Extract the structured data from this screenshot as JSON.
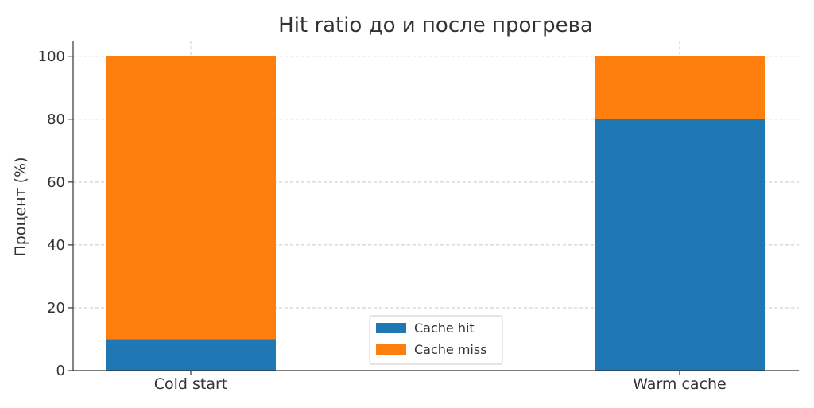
{
  "chart_data": {
    "type": "bar",
    "stacked": true,
    "title": "Hit ratio до и после прогрева",
    "xlabel": "",
    "ylabel": "Процент (%)",
    "categories": [
      "Cold start",
      "Warm cache"
    ],
    "series": [
      {
        "name": "Cache hit",
        "values": [
          10,
          80
        ],
        "color": "#1f77b4"
      },
      {
        "name": "Cache miss",
        "values": [
          90,
          20
        ],
        "color": "#ff7f0e"
      }
    ],
    "ylim": [
      0,
      105
    ],
    "yticks": [
      0,
      20,
      40,
      60,
      80,
      100
    ],
    "grid": true,
    "legend_position": "bottom-center"
  }
}
